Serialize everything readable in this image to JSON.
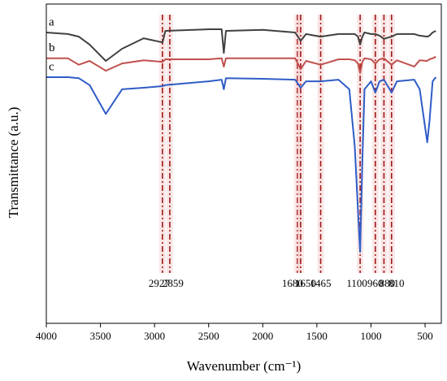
{
  "chart_data": {
    "type": "line",
    "xlabel": "Wavenumber (cm⁻¹)",
    "ylabel": "Transmittance (a.u.)",
    "x": [
      4000,
      3800,
      3700,
      3600,
      3450,
      3300,
      3100,
      2927,
      2900,
      2500,
      2380,
      2360,
      2340,
      2000,
      1700,
      1650,
      1600,
      1465,
      1300,
      1200,
      1150,
      1120,
      1100,
      1080,
      1060,
      1000,
      960,
      920,
      880,
      810,
      760,
      600,
      550,
      480,
      460,
      430,
      400
    ],
    "series": [
      {
        "name": "a",
        "color": "#404040",
        "values": [
          91.1,
          90.6,
          89.8,
          87.3,
          82.2,
          86.0,
          89.3,
          88.0,
          91.6,
          92.1,
          92.1,
          84.7,
          91.6,
          91.9,
          91.1,
          88.5,
          90.6,
          89.8,
          90.6,
          90.6,
          90.6,
          89.8,
          87.3,
          89.8,
          91.1,
          90.6,
          90.6,
          90.1,
          89.1,
          89.8,
          90.6,
          90.6,
          90.1,
          89.8,
          90.1,
          91.1,
          91.6
        ]
      },
      {
        "name": "b",
        "color": "#c0504d",
        "values": [
          83.0,
          83.0,
          81.0,
          82.2,
          79.1,
          81.4,
          82.4,
          81.9,
          82.7,
          82.7,
          83.0,
          80.4,
          83.0,
          83.0,
          83.0,
          79.6,
          82.2,
          81.0,
          82.7,
          82.7,
          82.4,
          81.4,
          78.4,
          81.9,
          83.0,
          82.7,
          81.4,
          82.7,
          83.0,
          81.0,
          82.4,
          80.4,
          82.4,
          82.2,
          82.7,
          83.0,
          83.5
        ]
      },
      {
        "name": "c",
        "color": "#2f5cc7",
        "values": [
          77.1,
          77.1,
          76.8,
          74.6,
          65.6,
          73.3,
          73.8,
          74.3,
          74.6,
          75.8,
          76.3,
          73.3,
          76.8,
          76.6,
          76.3,
          73.8,
          75.8,
          75.8,
          76.3,
          73.3,
          55.5,
          35.1,
          22.4,
          50.4,
          73.3,
          75.8,
          72.3,
          75.8,
          76.3,
          72.3,
          75.8,
          76.3,
          73.3,
          56.7,
          63.1,
          75.8,
          77.1
        ]
      }
    ],
    "markers": [
      2927,
      2859,
      1680,
      1650,
      1465,
      1100,
      960,
      880,
      810
    ],
    "xlim": [
      4000,
      350
    ],
    "ylim": [
      0,
      100
    ],
    "xticks": [
      4000,
      3500,
      3000,
      2500,
      2000,
      1500,
      1000,
      500
    ]
  }
}
